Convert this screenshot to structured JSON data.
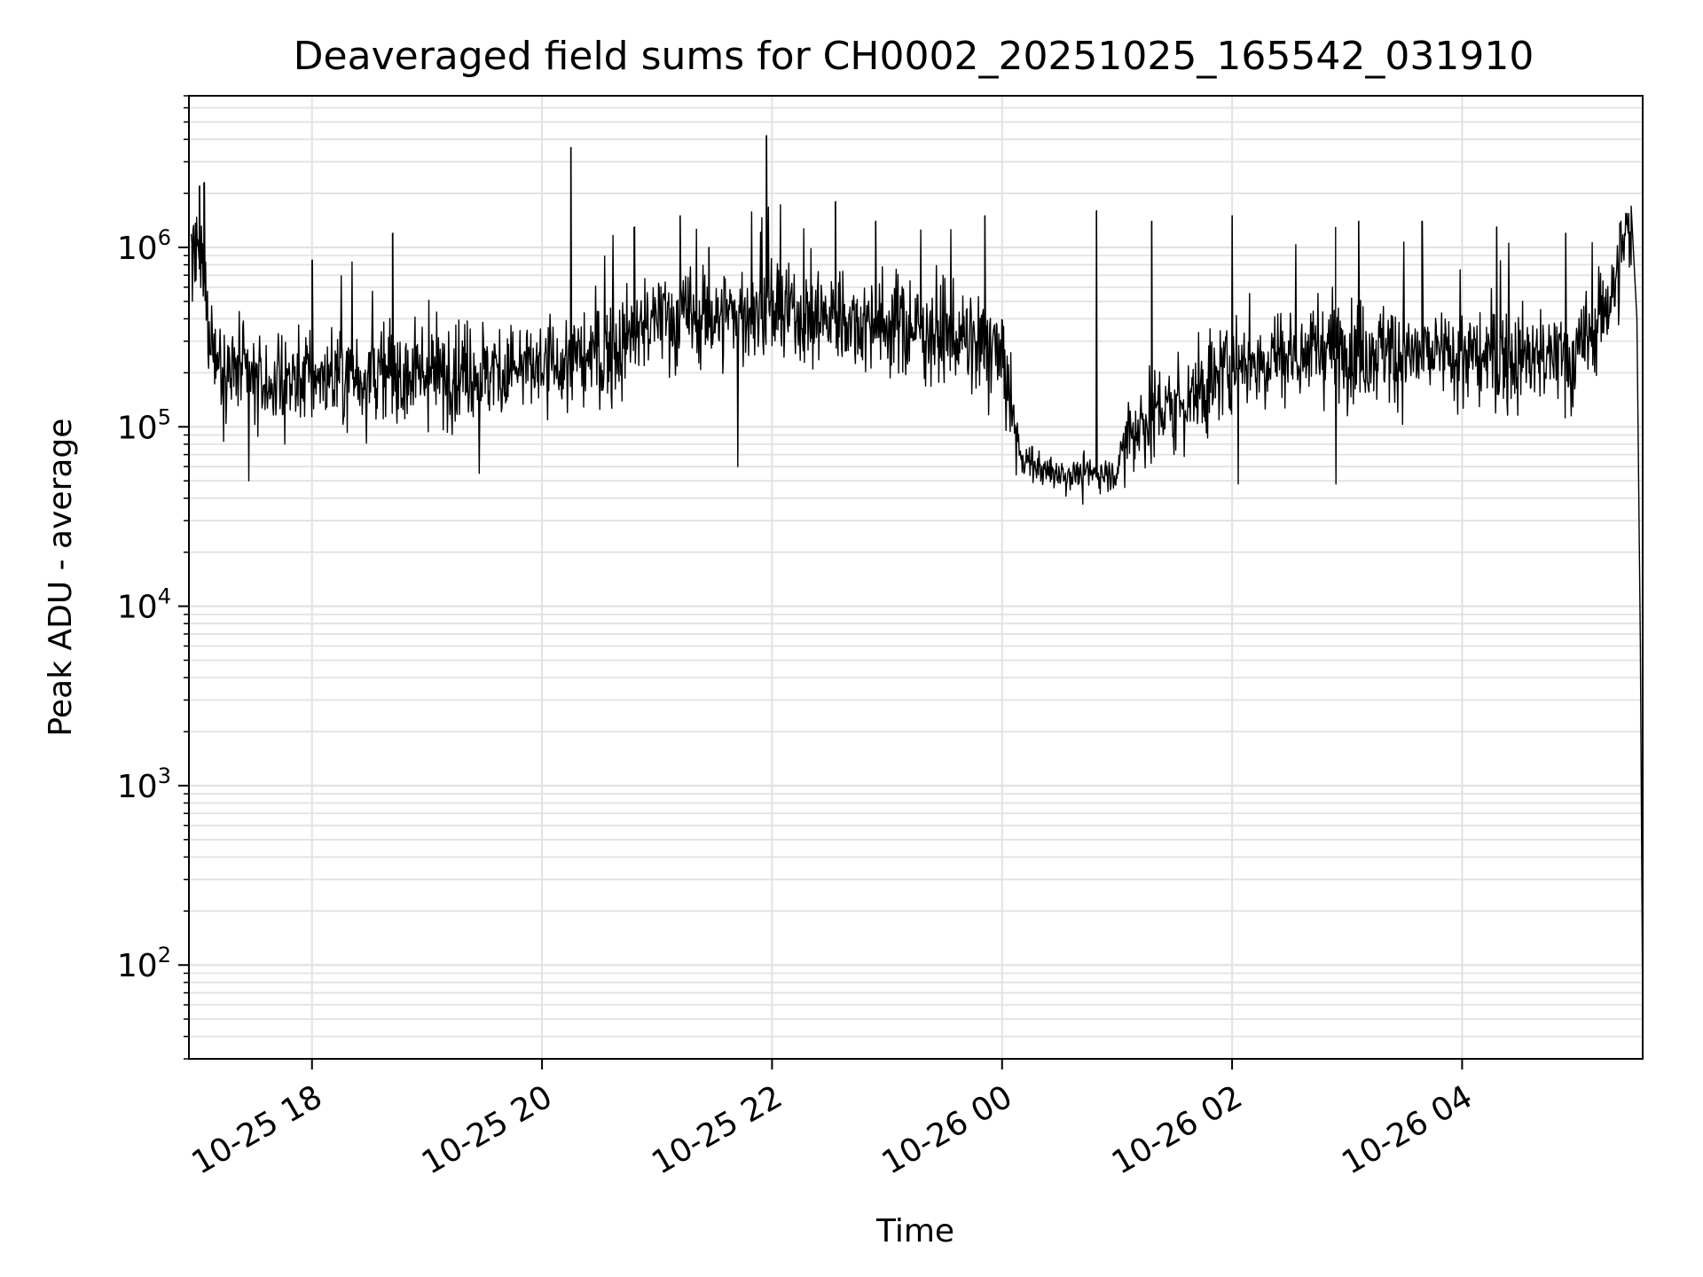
{
  "chart_data": {
    "type": "line",
    "title": "Deaveraged field sums for CH0002_20251025_165542_031910",
    "xlabel": "Time",
    "ylabel": "Peak ADU - average",
    "yscale": "log",
    "ylim": [
      30,
      7000000
    ],
    "xlim_hours": [
      16.93,
      29.57
    ],
    "x_tick_hours": [
      18,
      20,
      22,
      24,
      26,
      28
    ],
    "x_tick_labels": [
      "10-25 18",
      "10-25 20",
      "10-25 22",
      "10-26 00",
      "10-26 02",
      "10-26 04"
    ],
    "y_ticks": [
      {
        "base": "10",
        "exp": "2",
        "value": 100
      },
      {
        "base": "10",
        "exp": "3",
        "value": 1000
      },
      {
        "base": "10",
        "exp": "4",
        "value": 10000
      },
      {
        "base": "10",
        "exp": "5",
        "value": 100000
      },
      {
        "base": "10",
        "exp": "6",
        "value": 1000000
      }
    ],
    "grid": "both (major and minor)",
    "line_color": "#000000",
    "grid_color": "#e2e2e2",
    "series": [
      {
        "name": "Peak ADU - average",
        "baseline_segments": [
          {
            "t": 16.95,
            "median": 900000
          },
          {
            "t": 17.05,
            "median": 700000
          },
          {
            "t": 17.15,
            "median": 250000
          },
          {
            "t": 17.5,
            "median": 170000
          },
          {
            "t": 18.0,
            "median": 190000
          },
          {
            "t": 19.0,
            "median": 200000
          },
          {
            "t": 20.0,
            "median": 210000
          },
          {
            "t": 20.6,
            "median": 260000
          },
          {
            "t": 21.0,
            "median": 400000
          },
          {
            "t": 22.0,
            "median": 430000
          },
          {
            "t": 23.0,
            "median": 380000
          },
          {
            "t": 23.5,
            "median": 330000
          },
          {
            "t": 24.0,
            "median": 250000
          },
          {
            "t": 24.15,
            "median": 70000
          },
          {
            "t": 24.4,
            "median": 55000
          },
          {
            "t": 25.0,
            "median": 55000
          },
          {
            "t": 25.1,
            "median": 100000
          },
          {
            "t": 25.5,
            "median": 130000
          },
          {
            "t": 25.75,
            "median": 160000
          },
          {
            "t": 26.0,
            "median": 230000
          },
          {
            "t": 27.0,
            "median": 280000
          },
          {
            "t": 28.0,
            "median": 240000
          },
          {
            "t": 29.0,
            "median": 240000
          },
          {
            "t": 29.3,
            "median": 550000
          },
          {
            "t": 29.45,
            "median": 1300000
          },
          {
            "t": 29.52,
            "median": 300000
          }
        ],
        "spikes": [
          {
            "t": 17.02,
            "value": 2200000
          },
          {
            "t": 17.06,
            "value": 2300000
          },
          {
            "t": 18.0,
            "value": 850000
          },
          {
            "t": 18.7,
            "value": 1200000
          },
          {
            "t": 20.25,
            "value": 3600000
          },
          {
            "t": 20.8,
            "value": 1300000
          },
          {
            "t": 21.2,
            "value": 1500000
          },
          {
            "t": 21.45,
            "value": 1000000
          },
          {
            "t": 21.95,
            "value": 4200000
          },
          {
            "t": 22.55,
            "value": 1800000
          },
          {
            "t": 22.9,
            "value": 1400000
          },
          {
            "t": 23.85,
            "value": 1500000
          },
          {
            "t": 24.82,
            "value": 1600000
          },
          {
            "t": 25.3,
            "value": 1400000
          },
          {
            "t": 26.0,
            "value": 1500000
          },
          {
            "t": 26.9,
            "value": 1300000
          },
          {
            "t": 27.1,
            "value": 1400000
          },
          {
            "t": 27.65,
            "value": 1400000
          },
          {
            "t": 28.3,
            "value": 1300000
          },
          {
            "t": 28.9,
            "value": 1200000
          }
        ],
        "dips": [
          {
            "t": 17.45,
            "value": 50000
          },
          {
            "t": 19.45,
            "value": 55000
          },
          {
            "t": 21.7,
            "value": 60000
          },
          {
            "t": 24.7,
            "value": 37000
          },
          {
            "t": 26.05,
            "value": 48000
          },
          {
            "t": 26.9,
            "value": 48000
          }
        ],
        "end_drop": [
          {
            "t": 29.47,
            "value": 1700000
          },
          {
            "t": 29.52,
            "value": 400000
          },
          {
            "t": 29.55,
            "value": 6000
          },
          {
            "t": 29.57,
            "value": 50
          }
        ]
      }
    ]
  }
}
